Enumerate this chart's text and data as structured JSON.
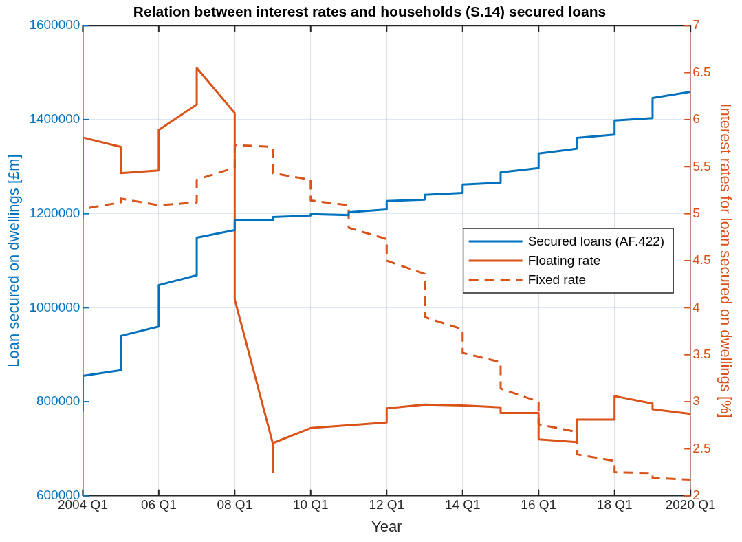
{
  "chart_data": {
    "type": "line",
    "title": "Relation between interest rates and households (S.14) secured loans",
    "xlabel": "Year",
    "ylabel": "Loan secured on dwellings [£m]",
    "y2label": "Interest rates for loan secured on dwellings [%]",
    "xlim": [
      "2004-01",
      "2020-01"
    ],
    "xticks": [
      {
        "value": "2004-01",
        "label": "2004 Q1"
      },
      {
        "value": "2006-01",
        "label": "06 Q1"
      },
      {
        "value": "2008-01",
        "label": "08 Q1"
      },
      {
        "value": "2010-01",
        "label": "10 Q1"
      },
      {
        "value": "2012-01",
        "label": "12 Q1"
      },
      {
        "value": "2014-01",
        "label": "14 Q1"
      },
      {
        "value": "2016-01",
        "label": "16 Q1"
      },
      {
        "value": "2018-01",
        "label": "18 Q1"
      },
      {
        "value": "2020-01",
        "label": "2020 Q1"
      }
    ],
    "ylim": [
      600000,
      1600000
    ],
    "yticks": [
      600000,
      800000,
      1000000,
      1200000,
      1400000,
      1600000
    ],
    "y2lim": [
      2,
      7
    ],
    "y2ticks": [
      2,
      2.5,
      3,
      3.5,
      4,
      4.5,
      5,
      5.5,
      6,
      6.5,
      7
    ],
    "grid": true,
    "legend": "right",
    "marker": "none",
    "series": [
      {
        "name": "Secured loans (AF.422)",
        "color": "#0072bd",
        "line_style": "solid",
        "x": [
          "2004-01",
          "2004-01",
          "2005-01",
          "2005-01",
          "2006-01",
          "2006-01",
          "2007-01",
          "2007-01",
          "2008-01",
          "2008-01",
          "2009-01",
          "2009-01",
          "2010-01",
          "2010-01",
          "2011-01",
          "2011-01",
          "2012-01",
          "2012-01",
          "2013-01",
          "2013-01",
          "2014-01",
          "2014-01",
          "2015-01",
          "2015-01",
          "2016-01",
          "2016-01",
          "2017-01",
          "2017-01",
          "2018-01",
          "2018-01",
          "2019-01",
          "2019-01",
          "2020-01"
        ],
        "values": [
          779000,
          855000,
          867000,
          940000,
          960000,
          1048000,
          1069000,
          1149000,
          1165000,
          1187000,
          1186000,
          1193000,
          1196000,
          1199000,
          1197000,
          1203000,
          1209000,
          1227000,
          1230000,
          1240000,
          1244000,
          1262000,
          1266000,
          1288000,
          1297000,
          1328000,
          1338000,
          1361000,
          1368000,
          1398000,
          1403000,
          1446000,
          1459000
        ]
      },
      {
        "name": "Floating rate",
        "color": "#d95319",
        "axis": "y2",
        "line_style": "solid",
        "x": [
          "2004-01",
          "2004-01",
          "2005-01",
          "2005-01",
          "2006-01",
          "2006-01",
          "2007-01",
          "2007-01",
          "2008-01",
          "2008-01",
          "2009-01",
          "2009-01",
          "2009-01",
          "2010-01",
          "2011-01",
          "2012-01",
          "2012-01",
          "2013-01",
          "2014-01",
          "2015-01",
          "2015-01",
          "2016-01",
          "2016-01",
          "2017-01",
          "2017-01",
          "2018-01",
          "2018-01",
          "2019-01",
          "2019-01",
          "2020-01"
        ],
        "values": [
          5.05,
          5.81,
          5.71,
          5.43,
          5.46,
          5.89,
          6.16,
          6.55,
          6.07,
          4.09,
          2.56,
          2.25,
          2.56,
          2.72,
          2.75,
          2.78,
          2.93,
          2.97,
          2.96,
          2.94,
          2.88,
          2.88,
          2.6,
          2.57,
          2.81,
          2.81,
          3.06,
          2.98,
          2.92,
          2.87
        ]
      },
      {
        "name": "Fixed rate",
        "color": "#d95319",
        "axis": "y2",
        "line_style": "dashed",
        "x": [
          "2004-01",
          "2004-01",
          "2005-01",
          "2005-01",
          "2006-01",
          "2007-01",
          "2007-01",
          "2008-01",
          "2008-01",
          "2009-01",
          "2009-01",
          "2010-01",
          "2010-01",
          "2011-01",
          "2011-01",
          "2012-01",
          "2012-01",
          "2013-01",
          "2013-01",
          "2014-01",
          "2014-01",
          "2015-01",
          "2015-01",
          "2016-01",
          "2016-01",
          "2017-01",
          "2017-01",
          "2018-01",
          "2018-01",
          "2019-01",
          "2019-01",
          "2020-01"
        ],
        "values": [
          4.95,
          5.05,
          5.12,
          5.16,
          5.09,
          5.12,
          5.36,
          5.49,
          5.73,
          5.71,
          5.43,
          5.36,
          5.14,
          5.09,
          4.85,
          4.73,
          4.5,
          4.36,
          3.9,
          3.77,
          3.52,
          3.42,
          3.14,
          3.0,
          2.76,
          2.68,
          2.44,
          2.37,
          2.25,
          2.24,
          2.19,
          2.17
        ]
      }
    ]
  }
}
